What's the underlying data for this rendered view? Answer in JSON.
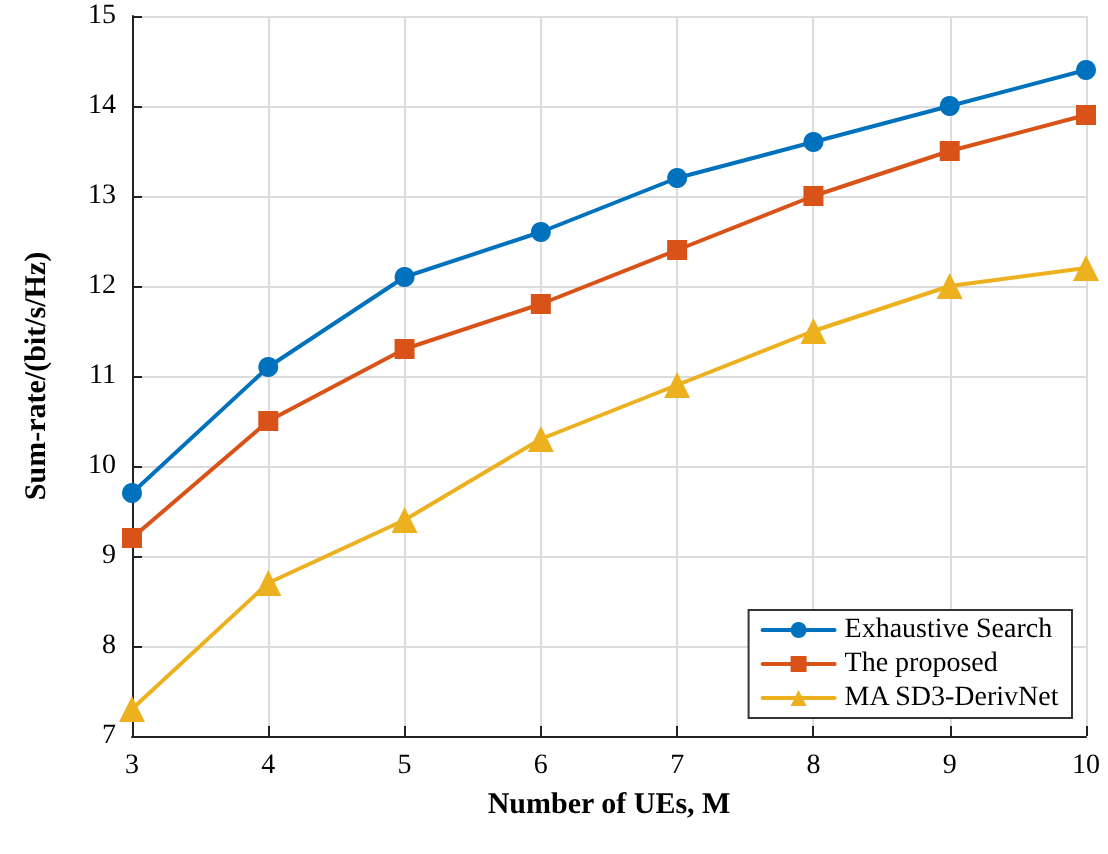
{
  "chart_data": {
    "type": "line",
    "xlabel": "Number of UEs, M",
    "ylabel": "Sum-rate/(bit/s/Hz)",
    "x": [
      3,
      4,
      5,
      6,
      7,
      8,
      9,
      10
    ],
    "series": [
      {
        "name": "Exhaustive Search",
        "color": "#0072bd",
        "marker": "circle",
        "values": [
          9.7,
          11.1,
          12.1,
          12.6,
          13.2,
          13.6,
          14.0,
          14.4
        ]
      },
      {
        "name": "The proposed",
        "color": "#d95319",
        "marker": "square",
        "values": [
          9.2,
          10.5,
          11.3,
          11.8,
          12.4,
          13.0,
          13.5,
          13.9
        ]
      },
      {
        "name": "MA SD3-DerivNet",
        "color": "#edb120",
        "marker": "triangle",
        "values": [
          7.3,
          8.7,
          9.4,
          10.3,
          10.9,
          11.5,
          12.0,
          12.2
        ]
      }
    ],
    "xlim": [
      3,
      10
    ],
    "xticks": [
      3,
      4,
      5,
      6,
      7,
      8,
      9,
      10
    ],
    "ylim": [
      7,
      15
    ],
    "yticks": [
      7,
      8,
      9,
      10,
      11,
      12,
      13,
      14,
      15
    ],
    "grid": true,
    "legend": "bottom right",
    "line_style": "solid"
  }
}
